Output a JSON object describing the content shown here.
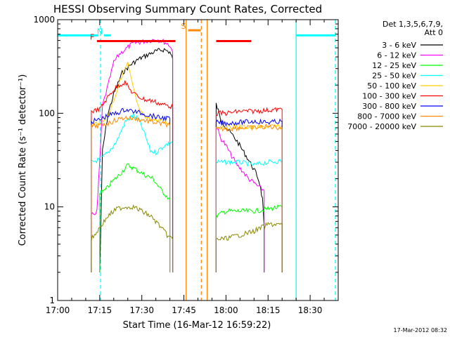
{
  "chart_data": {
    "type": "line",
    "title": "HESSI Observing Summary Count Rates, Corrected",
    "xlabel": "Start Time (16-Mar-12 16:59:22)",
    "ylabel": "Corrected Count Rate (s⁻¹ detector⁻¹)",
    "timestamp": "17-Mar-2012 08:32",
    "x_unit": "minutes after 17:00 UT",
    "xlim": [
      0,
      100
    ],
    "ylim": [
      1,
      1000
    ],
    "yscale": "log",
    "x_ticks": [
      {
        "value": 0,
        "label": "17:00"
      },
      {
        "value": 15,
        "label": "17:15"
      },
      {
        "value": 30,
        "label": "17:30"
      },
      {
        "value": 45,
        "label": "17:45"
      },
      {
        "value": 60,
        "label": "18:00"
      },
      {
        "value": 75,
        "label": "18:15"
      },
      {
        "value": 90,
        "label": "18:30"
      }
    ],
    "y_ticks": [
      {
        "value": 1,
        "label": "1"
      },
      {
        "value": 10,
        "label": "10"
      },
      {
        "value": 100,
        "label": "100"
      },
      {
        "value": 1000,
        "label": "1000"
      }
    ],
    "legend": {
      "position": "right",
      "header": [
        "Det 1,3,5,6,7,9,",
        "Att 0"
      ]
    },
    "series": [
      {
        "name": "3 - 6 keV",
        "color": "#000000",
        "segments": [
          [
            [
              15,
              2
            ],
            [
              16,
              40
            ],
            [
              18,
              100
            ],
            [
              20,
              160
            ],
            [
              23,
              270
            ],
            [
              26,
              330
            ],
            [
              29,
              380
            ],
            [
              32,
              420
            ],
            [
              35,
              460
            ],
            [
              38,
              480
            ],
            [
              40,
              450
            ],
            [
              41,
              380
            ]
          ],
          [
            [
              56.5,
              125
            ],
            [
              58,
              90
            ],
            [
              60,
              70
            ],
            [
              62,
              60
            ],
            [
              64,
              50
            ],
            [
              66,
              40
            ],
            [
              68,
              32
            ],
            [
              70,
              25
            ],
            [
              71,
              22
            ],
            [
              72,
              18
            ],
            [
              73,
              12
            ],
            [
              73.6,
              6
            ]
          ]
        ]
      },
      {
        "name": "6 - 12 keV",
        "color": "#ff00ff",
        "segments": [
          [
            [
              12,
              8
            ],
            [
              14,
              9
            ],
            [
              15,
              30
            ],
            [
              16,
              120
            ],
            [
              18,
              200
            ],
            [
              20,
              350
            ],
            [
              22,
              430
            ],
            [
              24,
              480
            ],
            [
              27,
              560
            ],
            [
              30,
              580
            ],
            [
              33,
              600
            ],
            [
              35,
              620
            ],
            [
              38,
              580
            ],
            [
              40,
              530
            ],
            [
              41,
              450
            ]
          ],
          [
            [
              56.5,
              75
            ],
            [
              58,
              55
            ],
            [
              60,
              45
            ],
            [
              62,
              35
            ],
            [
              64,
              28
            ],
            [
              66,
              24
            ],
            [
              68,
              20
            ],
            [
              70,
              18
            ],
            [
              72,
              16
            ],
            [
              73.6,
              15
            ]
          ]
        ]
      },
      {
        "name": "12 - 25 keV",
        "color": "#00ff00",
        "segments": [
          [
            [
              15,
              14
            ],
            [
              17,
              15
            ],
            [
              19,
              18
            ],
            [
              22,
              22
            ],
            [
              25,
              28
            ],
            [
              28,
              25
            ],
            [
              31,
              22
            ],
            [
              34,
              20
            ],
            [
              37,
              15
            ],
            [
              40,
              12
            ]
          ],
          [
            [
              56.5,
              8
            ],
            [
              60,
              9
            ],
            [
              65,
              9
            ],
            [
              70,
              9
            ],
            [
              75,
              9.5
            ],
            [
              80,
              10
            ]
          ]
        ]
      },
      {
        "name": "25 - 50 keV",
        "color": "#00ffff",
        "segments": [
          [
            [
              12,
              30
            ],
            [
              15,
              32
            ],
            [
              18,
              38
            ],
            [
              21,
              50
            ],
            [
              24,
              80
            ],
            [
              27,
              95
            ],
            [
              29,
              85
            ],
            [
              31,
              60
            ],
            [
              33,
              40
            ],
            [
              35,
              38
            ],
            [
              38,
              45
            ],
            [
              41,
              50
            ]
          ],
          [
            [
              56.5,
              30
            ],
            [
              60,
              30
            ],
            [
              65,
              30
            ],
            [
              70,
              28
            ],
            [
              75,
              30
            ],
            [
              80,
              31
            ]
          ]
        ]
      },
      {
        "name": "50 - 100 keV",
        "color": "#ffcc00",
        "segments": [
          [
            [
              12,
              75
            ],
            [
              15,
              80
            ],
            [
              18,
              95
            ],
            [
              21,
              170
            ],
            [
              23,
              260
            ],
            [
              25,
              340
            ],
            [
              27,
              180
            ],
            [
              29,
              110
            ],
            [
              31,
              90
            ],
            [
              35,
              85
            ],
            [
              40,
              78
            ]
          ],
          [
            [
              56.5,
              70
            ],
            [
              60,
              72
            ],
            [
              65,
              72
            ],
            [
              70,
              70
            ],
            [
              75,
              72
            ],
            [
              80,
              72
            ]
          ]
        ]
      },
      {
        "name": "100 - 300 keV",
        "color": "#ff0000",
        "segments": [
          [
            [
              12,
              105
            ],
            [
              15,
              110
            ],
            [
              18,
              150
            ],
            [
              20,
              180
            ],
            [
              22,
              200
            ],
            [
              24,
              215
            ],
            [
              26,
              175
            ],
            [
              28,
              155
            ],
            [
              31,
              140
            ],
            [
              34,
              135
            ],
            [
              37,
              125
            ],
            [
              40,
              120
            ],
            [
              41,
              115
            ]
          ],
          [
            [
              56.5,
              100
            ],
            [
              60,
              100
            ],
            [
              65,
              105
            ],
            [
              70,
              105
            ],
            [
              75,
              108
            ],
            [
              80,
              110
            ]
          ]
        ]
      },
      {
        "name": "300 - 800 keV",
        "color": "#0000ff",
        "segments": [
          [
            [
              12,
              82
            ],
            [
              15,
              85
            ],
            [
              18,
              95
            ],
            [
              21,
              100
            ],
            [
              24,
              110
            ],
            [
              27,
              105
            ],
            [
              30,
              100
            ],
            [
              33,
              95
            ],
            [
              36,
              90
            ],
            [
              40,
              88
            ]
          ],
          [
            [
              56.5,
              80
            ],
            [
              60,
              78
            ],
            [
              65,
              80
            ],
            [
              70,
              82
            ],
            [
              75,
              80
            ],
            [
              80,
              82
            ]
          ]
        ]
      },
      {
        "name": "800 - 7000 keV",
        "color": "#ff8800",
        "segments": [
          [
            [
              12,
              72
            ],
            [
              15,
              74
            ],
            [
              18,
              78
            ],
            [
              21,
              85
            ],
            [
              24,
              90
            ],
            [
              27,
              88
            ],
            [
              30,
              85
            ],
            [
              33,
              82
            ],
            [
              36,
              78
            ],
            [
              40,
              75
            ]
          ],
          [
            [
              56.5,
              68
            ],
            [
              60,
              68
            ],
            [
              65,
              70
            ],
            [
              70,
              70
            ],
            [
              75,
              72
            ],
            [
              80,
              70
            ]
          ]
        ]
      },
      {
        "name": "7000 - 20000 keV",
        "color": "#888800",
        "segments": [
          [
            [
              12,
              4.5
            ],
            [
              15,
              6
            ],
            [
              18,
              8
            ],
            [
              21,
              9.5
            ],
            [
              24,
              10
            ],
            [
              27,
              10
            ],
            [
              30,
              9
            ],
            [
              33,
              8
            ],
            [
              36,
              6.5
            ],
            [
              39,
              5
            ],
            [
              41,
              4.5
            ]
          ],
          [
            [
              56.5,
              4.5
            ],
            [
              60,
              4.6
            ],
            [
              65,
              5
            ],
            [
              70,
              5.5
            ],
            [
              75,
              6.5
            ],
            [
              80,
              6.5
            ]
          ]
        ]
      }
    ],
    "state_bars": [
      {
        "label": "",
        "color": "#00ffff",
        "x0": 0,
        "x1": 14.5,
        "y": 680
      },
      {
        "label": "N",
        "color": "#00ffff",
        "x0": 16.5,
        "x1": 19,
        "y": 680
      },
      {
        "label": "F",
        "color": "#ff0000",
        "x0": 14,
        "x1": 42,
        "y": 590
      },
      {
        "label": "S",
        "color": "#ff8800",
        "x0": 46.5,
        "x1": 51,
        "y": 770
      },
      {
        "label": "",
        "color": "#ff0000",
        "x0": 56.5,
        "x1": 69,
        "y": 590
      },
      {
        "label": "",
        "color": "#00ffff",
        "x0": 85,
        "x1": 99,
        "y": 680
      }
    ],
    "vlines": [
      {
        "x": 15.3,
        "color": "#00ffff",
        "style": "dashed"
      },
      {
        "x": 45.8,
        "color": "#ff8800",
        "style": "solid"
      },
      {
        "x": 51.2,
        "color": "#ff8800",
        "style": "dashed"
      },
      {
        "x": 53.3,
        "color": "#ff8800",
        "style": "solid"
      },
      {
        "x": 85.0,
        "color": "#00ffff",
        "style": "solid"
      },
      {
        "x": 99.0,
        "color": "#00ffff",
        "style": "dashed"
      }
    ]
  }
}
